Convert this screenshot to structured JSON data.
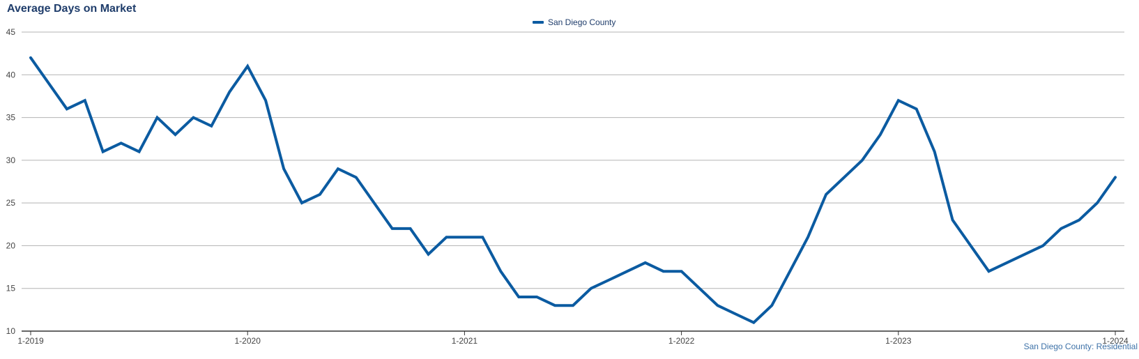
{
  "chart_data": {
    "type": "line",
    "title": "Average Days on Market",
    "xlabel": "",
    "ylabel": "",
    "ylim": [
      10,
      45
    ],
    "yticks": [
      10,
      15,
      20,
      25,
      30,
      35,
      40,
      45
    ],
    "xticks": [
      "1-2019",
      "1-2020",
      "1-2021",
      "1-2022",
      "1-2023",
      "1-2024"
    ],
    "grid": true,
    "legend_position": "top-center",
    "note": "San Diego County: Residential",
    "series": [
      {
        "name": "San Diego County",
        "color": "#0b5ba1",
        "x": [
          "1-2019",
          "2-2019",
          "3-2019",
          "4-2019",
          "5-2019",
          "6-2019",
          "7-2019",
          "8-2019",
          "9-2019",
          "10-2019",
          "11-2019",
          "12-2019",
          "1-2020",
          "2-2020",
          "3-2020",
          "4-2020",
          "5-2020",
          "6-2020",
          "7-2020",
          "8-2020",
          "9-2020",
          "10-2020",
          "11-2020",
          "12-2020",
          "1-2021",
          "2-2021",
          "3-2021",
          "4-2021",
          "5-2021",
          "6-2021",
          "7-2021",
          "8-2021",
          "9-2021",
          "10-2021",
          "11-2021",
          "12-2021",
          "1-2022",
          "2-2022",
          "3-2022",
          "4-2022",
          "5-2022",
          "6-2022",
          "7-2022",
          "8-2022",
          "9-2022",
          "10-2022",
          "11-2022",
          "12-2022",
          "1-2023",
          "2-2023",
          "3-2023",
          "4-2023",
          "5-2023",
          "6-2023",
          "7-2023",
          "8-2023",
          "9-2023",
          "10-2023",
          "11-2023",
          "12-2023",
          "1-2024"
        ],
        "values": [
          42,
          39,
          36,
          37,
          31,
          32,
          31,
          35,
          33,
          35,
          34,
          38,
          41,
          37,
          29,
          25,
          26,
          29,
          28,
          25,
          22,
          22,
          19,
          21,
          21,
          21,
          17,
          14,
          14,
          13,
          13,
          15,
          16,
          17,
          18,
          17,
          17,
          15,
          13,
          12,
          11,
          13,
          17,
          21,
          26,
          28,
          30,
          33,
          37,
          36,
          31,
          23,
          20,
          17,
          18,
          19,
          20,
          22,
          23,
          25,
          28
        ]
      }
    ]
  }
}
